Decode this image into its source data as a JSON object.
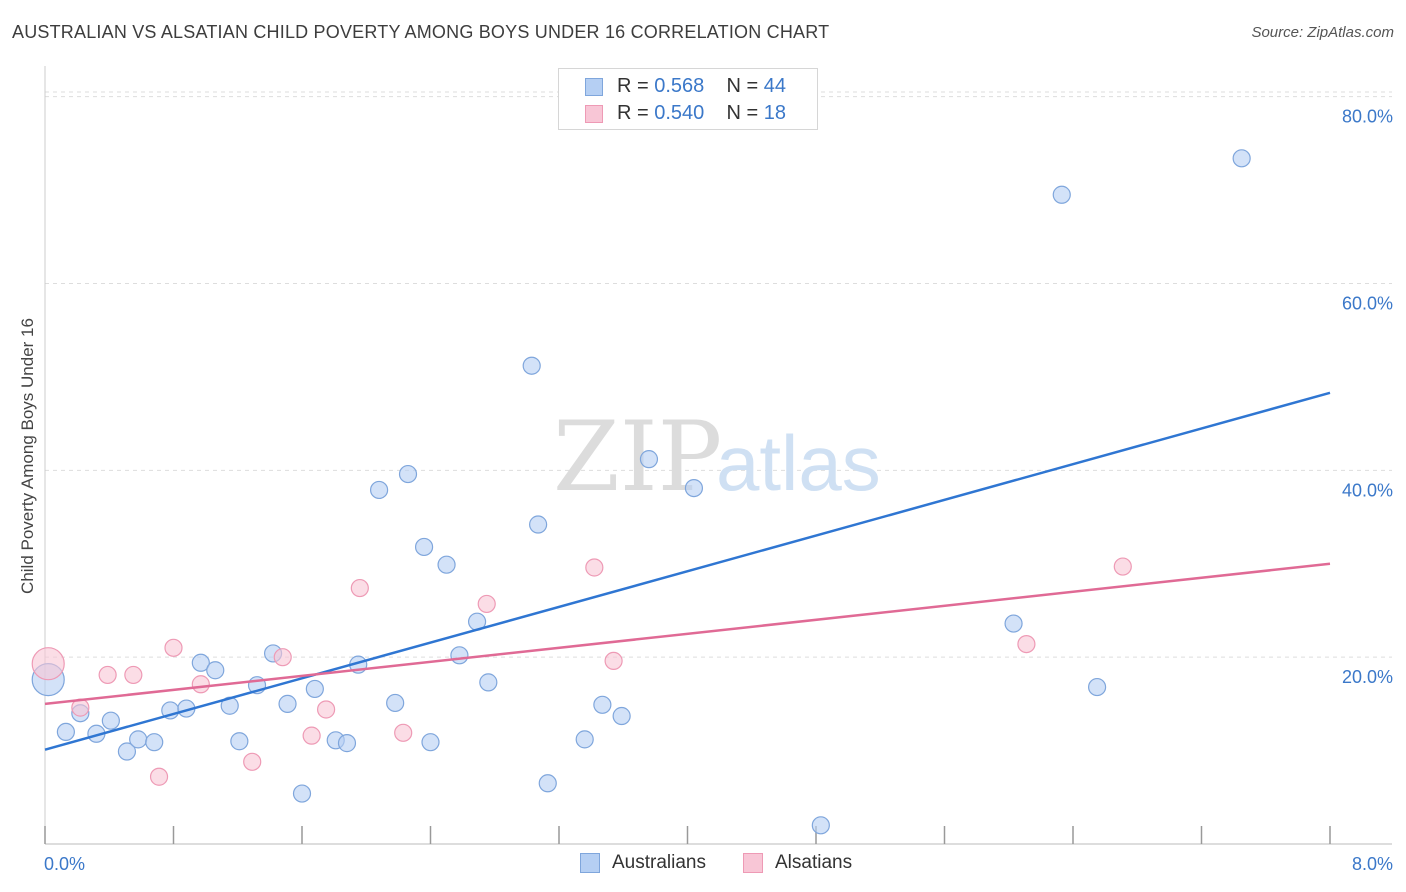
{
  "title": "AUSTRALIAN VS ALSATIAN CHILD POVERTY AMONG BOYS UNDER 16 CORRELATION CHART",
  "source": "Source: ZipAtlas.com",
  "watermark": {
    "zip": "ZIP",
    "atlas": "atlas"
  },
  "colors": {
    "blue_fill": "#b5cff3",
    "blue_stroke": "#7fa6dc",
    "blue_line": "#2f76d2",
    "pink_fill": "#f8c6d6",
    "pink_stroke": "#ee9ab5",
    "pink_line": "#e06a95",
    "tick_text": "#3b78c9",
    "grid": "#dddddd"
  },
  "legend": {
    "r_label": "R =",
    "n_label": "N =",
    "australians": {
      "r": "0.568",
      "n": "44"
    },
    "alsatians": {
      "r": "0.540",
      "n": "18"
    }
  },
  "chart_data": {
    "type": "scatter",
    "xlabel": "",
    "ylabel": "Child Poverty Among Boys Under 16",
    "xlim": [
      0,
      8
    ],
    "ylim": [
      0,
      82
    ],
    "x_tick_labels": [
      "0.0%",
      "8.0%"
    ],
    "y_ticks": [
      20,
      40,
      60,
      80
    ],
    "y_tick_labels": [
      "20.0%",
      "40.0%",
      "60.0%",
      "80.0%"
    ],
    "grid": true,
    "series": [
      {
        "name": "Australians",
        "points": [
          [
            0.02,
            17.6
          ],
          [
            0.13,
            12.0
          ],
          [
            0.22,
            14.0
          ],
          [
            0.32,
            11.8
          ],
          [
            0.41,
            13.2
          ],
          [
            0.51,
            9.9
          ],
          [
            0.58,
            11.2
          ],
          [
            0.68,
            10.9
          ],
          [
            0.78,
            14.3
          ],
          [
            0.88,
            14.5
          ],
          [
            0.97,
            19.4
          ],
          [
            1.06,
            18.6
          ],
          [
            1.15,
            14.8
          ],
          [
            1.21,
            11.0
          ],
          [
            1.32,
            17.0
          ],
          [
            1.42,
            20.4
          ],
          [
            1.51,
            15.0
          ],
          [
            1.6,
            5.4
          ],
          [
            1.68,
            16.6
          ],
          [
            1.81,
            11.1
          ],
          [
            1.88,
            10.8
          ],
          [
            1.95,
            19.2
          ],
          [
            2.08,
            37.9
          ],
          [
            2.18,
            15.1
          ],
          [
            2.26,
            39.6
          ],
          [
            2.36,
            31.8
          ],
          [
            2.4,
            10.9
          ],
          [
            2.5,
            29.9
          ],
          [
            2.58,
            20.2
          ],
          [
            2.69,
            23.8
          ],
          [
            2.76,
            17.3
          ],
          [
            3.03,
            51.2
          ],
          [
            3.07,
            34.2
          ],
          [
            3.13,
            6.5
          ],
          [
            3.36,
            11.2
          ],
          [
            3.47,
            14.9
          ],
          [
            3.59,
            13.7
          ],
          [
            3.76,
            41.2
          ],
          [
            4.04,
            38.1
          ],
          [
            4.83,
            2.0
          ],
          [
            6.03,
            23.6
          ],
          [
            6.33,
            69.5
          ],
          [
            6.55,
            16.8
          ],
          [
            7.45,
            73.4
          ]
        ],
        "trend": [
          [
            0.0,
            10.1
          ],
          [
            8.0,
            48.3
          ]
        ]
      },
      {
        "name": "Alsatians",
        "points": [
          [
            0.02,
            19.3
          ],
          [
            0.22,
            14.6
          ],
          [
            0.39,
            18.1
          ],
          [
            0.55,
            18.1
          ],
          [
            0.71,
            7.2
          ],
          [
            0.8,
            21.0
          ],
          [
            0.97,
            17.1
          ],
          [
            1.29,
            8.8
          ],
          [
            1.48,
            20.0
          ],
          [
            1.66,
            11.6
          ],
          [
            1.75,
            14.4
          ],
          [
            1.96,
            27.4
          ],
          [
            2.23,
            11.9
          ],
          [
            2.75,
            25.7
          ],
          [
            3.42,
            29.6
          ],
          [
            3.54,
            19.6
          ],
          [
            6.11,
            21.4
          ],
          [
            6.71,
            29.7
          ]
        ],
        "trend": [
          [
            0.0,
            15.0
          ],
          [
            8.0,
            30.0
          ]
        ]
      }
    ],
    "legend_entries": [
      "Australians",
      "Alsatians"
    ]
  }
}
